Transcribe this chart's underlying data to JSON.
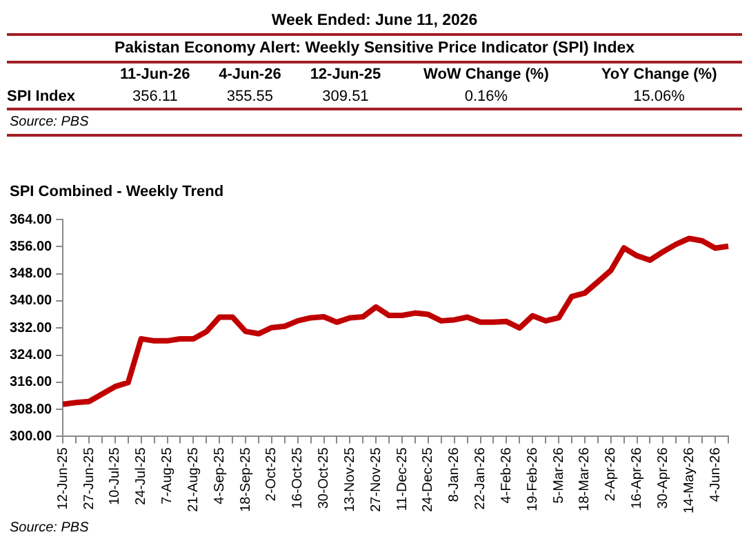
{
  "chart_data": {
    "type": "line",
    "title": "SPI Combined - Weekly Trend",
    "annotations": [
      "Week Ended: June 11, 2026",
      "Pakistan Economy Alert: Weekly Sensitive Price Indicator (SPI) Index",
      "11-Jun-26",
      "4-Jun-26",
      "12-Jun-25",
      "WoW Change (%)",
      "YoY Change (%)",
      "SPI Index",
      "356.11",
      "355.55",
      "309.51",
      "0.16%",
      "15.06%",
      "Source: PBS",
      "Source: PBS"
    ],
    "categories": [
      "12-Jun-25",
      null,
      "27-Jun-25",
      null,
      "10-Jul-25",
      null,
      "24-Jul-25",
      null,
      "7-Aug-25",
      null,
      "21-Aug-25",
      null,
      "4-Sep-25",
      null,
      "18-Sep-25",
      null,
      "2-Oct-25",
      null,
      "16-Oct-25",
      null,
      "30-Oct-25",
      null,
      "13-Nov-25",
      null,
      "27-Nov-25",
      null,
      "11-Dec-25",
      null,
      "24-Dec-25",
      null,
      "8-Jan-26",
      null,
      "22-Jan-26",
      null,
      "4-Feb-26",
      null,
      "19-Feb-26",
      null,
      "5-Mar-26",
      null,
      "18-Mar-26",
      null,
      "2-Apr-26",
      null,
      "16-Apr-26",
      null,
      "30-Apr-26",
      null,
      "14-May-26",
      null,
      "4-Jun-26",
      null
    ],
    "series": [
      {
        "color": "#c00000",
        "values": [
          309.51,
          310.0,
          310.3,
          312.5,
          314.7,
          315.9,
          328.8,
          328.2,
          328.2,
          328.8,
          328.8,
          330.9,
          335.2,
          335.2,
          331.0,
          330.3,
          332.1,
          332.5,
          334.1,
          335.0,
          335.3,
          333.7,
          335.0,
          335.3,
          338.2,
          335.7,
          335.7,
          336.4,
          336.0,
          334.1,
          334.4,
          335.2,
          333.7,
          333.7,
          333.9,
          332.0,
          335.6,
          334.1,
          335.0,
          341.3,
          342.3,
          345.6,
          349.0,
          355.6,
          353.3,
          352.0,
          354.5,
          356.7,
          358.4,
          357.7,
          355.55,
          356.11
        ]
      }
    ],
    "ylim": [
      300,
      364
    ],
    "yticks": [
      {
        "value": 300,
        "label": "300.00"
      },
      {
        "value": 308,
        "label": "308.00"
      },
      {
        "value": 316,
        "label": "316.00"
      },
      {
        "value": 324,
        "label": "324.00"
      },
      {
        "value": 332,
        "label": "332.00"
      },
      {
        "value": 340,
        "label": "340.00"
      },
      {
        "value": 348,
        "label": "348.00"
      },
      {
        "value": 356,
        "label": "356.00"
      },
      {
        "value": 364,
        "label": "364.00"
      }
    ],
    "grid": false,
    "legend": false,
    "marker": "none",
    "line_style": "solid"
  }
}
